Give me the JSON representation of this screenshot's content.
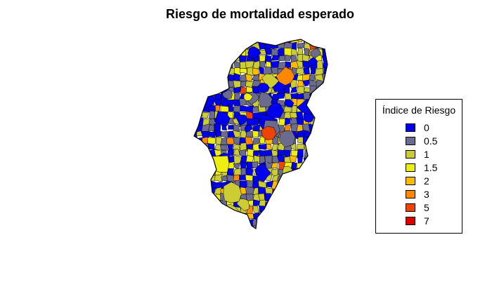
{
  "title": "Riesgo de mortalidad esperado",
  "legend": {
    "title": "Índice de Riesgo",
    "placement": "right",
    "items": [
      {
        "label": "0",
        "color": "#0000ee"
      },
      {
        "label": "0.5",
        "color": "#6b6b8f"
      },
      {
        "label": "1",
        "color": "#cccc33"
      },
      {
        "label": "1.5",
        "color": "#eeee11"
      },
      {
        "label": "2",
        "color": "#ffbb00"
      },
      {
        "label": "3",
        "color": "#ff8800"
      },
      {
        "label": "5",
        "color": "#ee4400"
      },
      {
        "label": "7",
        "color": "#dd0000"
      }
    ]
  },
  "map": {
    "region": "Aragón",
    "unit": "municipalities",
    "border_color": "#000000"
  }
}
